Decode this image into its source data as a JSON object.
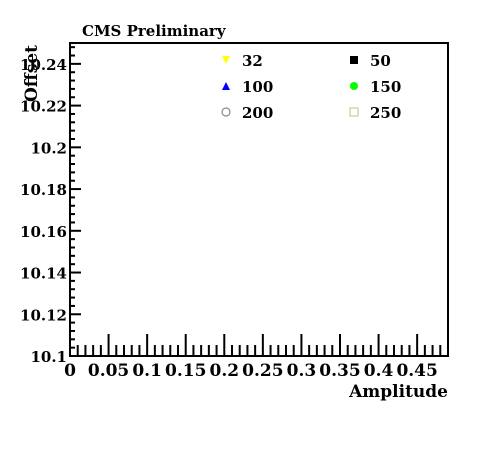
{
  "chart_data": {
    "type": "scatter",
    "title": "CMS Preliminary",
    "xlabel": "Amplitude",
    "ylabel": "Offset",
    "xlim": [
      0,
      0.49
    ],
    "ylim": [
      10.1,
      10.25
    ],
    "x_ticks": [
      0,
      0.05,
      0.1,
      0.15,
      0.2,
      0.25,
      0.3,
      0.35,
      0.4,
      0.45
    ],
    "x_tick_labels": [
      "0",
      "0.05",
      "0.1",
      "0.15",
      "0.2",
      "0.25",
      "0.3",
      "0.35",
      "0.4",
      "0.45"
    ],
    "y_ticks": [
      10.1,
      10.12,
      10.14,
      10.16,
      10.18,
      10.2,
      10.22,
      10.24
    ],
    "y_tick_labels": [
      "10.1",
      "10.12",
      "10.14",
      "10.16",
      "10.18",
      "10.2",
      "10.22",
      "10.24"
    ],
    "grid": false,
    "legend_position": "top-right",
    "series": [
      {
        "name": "32",
        "marker": "triangle-down",
        "color": "#ffff00",
        "points": []
      },
      {
        "name": "50",
        "marker": "square",
        "color": "#000000",
        "points": []
      },
      {
        "name": "100",
        "marker": "triangle-up",
        "color": "#0000ff",
        "points": []
      },
      {
        "name": "150",
        "marker": "circle",
        "color": "#00ff00",
        "points": []
      },
      {
        "name": "200",
        "marker": "open-circle",
        "color": "#888888",
        "points": []
      },
      {
        "name": "250",
        "marker": "open-square",
        "color": "#cccc99",
        "points": []
      }
    ]
  }
}
